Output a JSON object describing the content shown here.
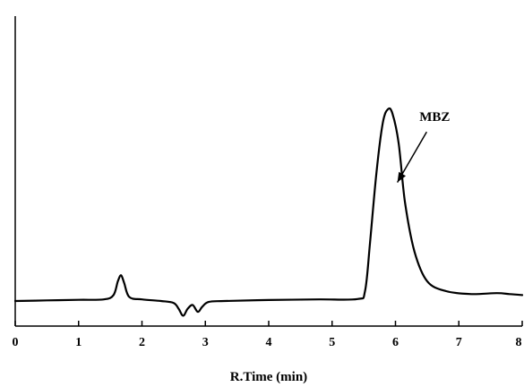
{
  "chart_data": {
    "type": "line",
    "xlabel": "R.Time (min)",
    "ylabel": "",
    "xlim": [
      0,
      8
    ],
    "ylim": [
      -0.06,
      1.0
    ],
    "x_ticks": [
      "0",
      "1",
      "2",
      "3",
      "4",
      "5",
      "6",
      "7",
      "8"
    ],
    "grid": false,
    "legend": "none",
    "line_color": "#000000",
    "series": [
      {
        "x": [
          0,
          0.5,
          1.0,
          1.4,
          1.55,
          1.62,
          1.67,
          1.72,
          1.8,
          2.0,
          2.3,
          2.5,
          2.58,
          2.65,
          2.72,
          2.8,
          2.88,
          2.95,
          3.05,
          3.3,
          4.0,
          4.8,
          5.4,
          5.52,
          5.6,
          5.7,
          5.8,
          5.88,
          5.95,
          6.05,
          6.15,
          6.3,
          6.5,
          6.8,
          7.2,
          7.6,
          7.8,
          8.0
        ],
        "y": [
          0.0,
          0.003,
          0.006,
          0.008,
          0.03,
          0.1,
          0.13,
          0.09,
          0.02,
          0.008,
          0.0,
          -0.01,
          -0.04,
          -0.075,
          -0.04,
          -0.02,
          -0.055,
          -0.03,
          -0.005,
          0.0,
          0.005,
          0.008,
          0.01,
          0.05,
          0.3,
          0.65,
          0.9,
          0.97,
          0.95,
          0.8,
          0.5,
          0.25,
          0.1,
          0.05,
          0.035,
          0.04,
          0.035,
          0.03
        ]
      }
    ],
    "annotations": [
      {
        "text": "MBZ",
        "x": 6.45,
        "y": 0.91,
        "arrow_to": [
          6.03,
          0.6
        ]
      }
    ]
  }
}
